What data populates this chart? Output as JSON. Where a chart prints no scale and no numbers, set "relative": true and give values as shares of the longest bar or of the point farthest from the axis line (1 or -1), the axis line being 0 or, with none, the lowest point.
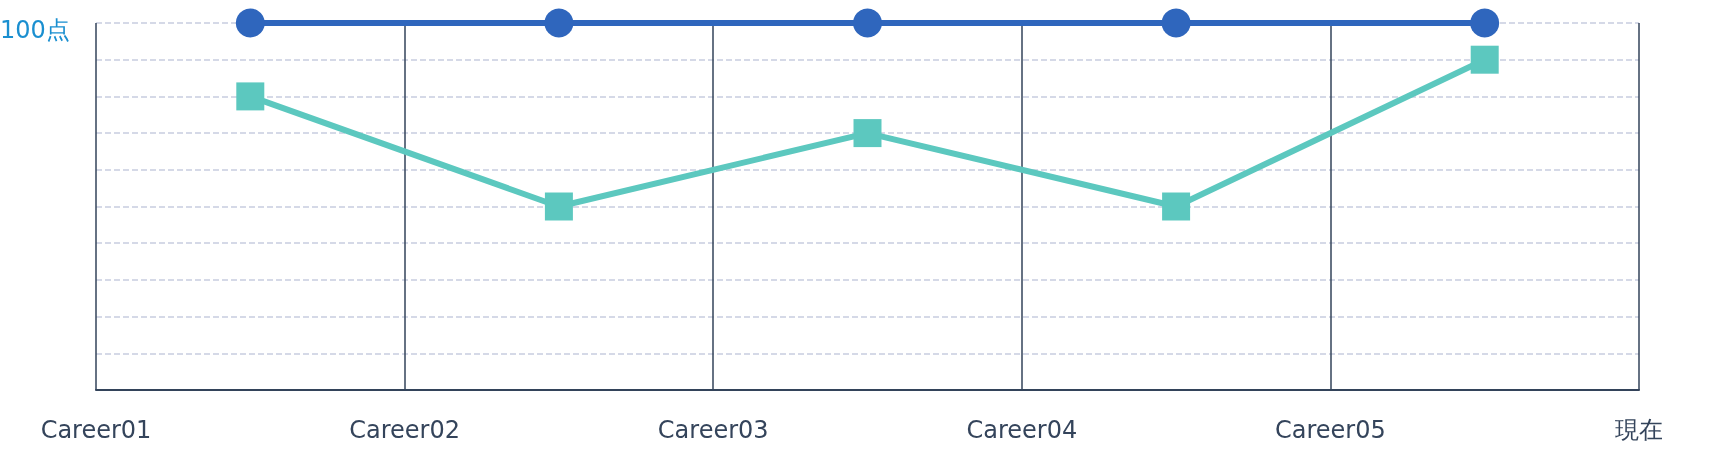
{
  "chart_data": {
    "type": "line",
    "relative": true,
    "categories": [
      "Career01",
      null,
      "Career02",
      null,
      "Career03",
      null,
      "Career04",
      null,
      "Career05",
      null,
      "現在"
    ],
    "series": [
      {
        "color": "#2f66bd",
        "marker": "circle",
        "values": [
          null,
          1,
          null,
          1,
          null,
          1,
          null,
          1,
          null,
          1,
          null
        ]
      },
      {
        "color": "#5cc8bf",
        "marker": "square",
        "values": [
          null,
          0.8,
          null,
          0.5,
          null,
          0.7,
          null,
          0.5,
          null,
          0.9,
          null
        ]
      }
    ],
    "annotations": [
      "100点"
    ],
    "grid": true,
    "line_style": "solid"
  }
}
